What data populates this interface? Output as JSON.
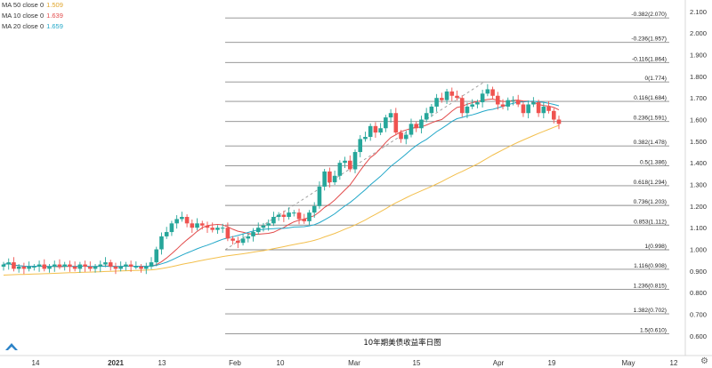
{
  "legend": [
    {
      "label": "MA 50 close 0",
      "value": "1.509",
      "color": "#f3bf4c"
    },
    {
      "label": "MA 10 close 0",
      "value": "1.639",
      "color": "#e24b4b"
    },
    {
      "label": "MA 20 close 0",
      "value": "1.659",
      "color": "#21a7c8"
    }
  ],
  "chart_data": {
    "type": "candlestick",
    "caption": "10年期美债收益率日图",
    "y_axis": {
      "range": [
        0.55,
        2.12
      ],
      "ticks": [
        "2.100",
        "2.000",
        "1.900",
        "1.800",
        "1.700",
        "1.600",
        "1.500",
        "1.400",
        "1.300",
        "1.200",
        "1.100",
        "1.000",
        "0.900",
        "0.800",
        "0.700",
        "0.600"
      ]
    },
    "x_axis": {
      "ticks": [
        {
          "label": "14",
          "bold": false
        },
        {
          "label": "2021",
          "bold": true
        },
        {
          "label": "13",
          "bold": false
        },
        {
          "label": "Feb",
          "bold": false
        },
        {
          "label": "10",
          "bold": false
        },
        {
          "label": "Mar",
          "bold": false
        },
        {
          "label": "15",
          "bold": false
        },
        {
          "label": "Apr",
          "bold": false
        },
        {
          "label": "19",
          "bold": false
        },
        {
          "label": "May",
          "bold": false
        },
        {
          "label": "12",
          "bold": false
        }
      ]
    },
    "fib_levels": [
      {
        "ratio": "-0.382",
        "value": 2.07,
        "label": "-0.382(2.070)"
      },
      {
        "ratio": "-0.236",
        "value": 1.957,
        "label": "-0.236(1.957)"
      },
      {
        "ratio": "-0.116",
        "value": 1.864,
        "label": "-0.116(1.864)"
      },
      {
        "ratio": "0",
        "value": 1.774,
        "label": "0(1.774)"
      },
      {
        "ratio": "0.116",
        "value": 1.684,
        "label": "0.116(1.684)"
      },
      {
        "ratio": "0.236",
        "value": 1.591,
        "label": "0.236(1.591)"
      },
      {
        "ratio": "0.382",
        "value": 1.478,
        "label": "0.382(1.478)"
      },
      {
        "ratio": "0.5",
        "value": 1.386,
        "label": "0.5(1.386)"
      },
      {
        "ratio": "0.618",
        "value": 1.294,
        "label": "0.618(1.294)"
      },
      {
        "ratio": "0.736",
        "value": 1.203,
        "label": "0.736(1.203)"
      },
      {
        "ratio": "0.853",
        "value": 1.112,
        "label": "0.853(1.112)"
      },
      {
        "ratio": "1",
        "value": 0.998,
        "label": "1(0.998)"
      },
      {
        "ratio": "1.116",
        "value": 0.908,
        "label": "1.116(0.908)"
      },
      {
        "ratio": "1.236",
        "value": 0.815,
        "label": "1.236(0.815)"
      },
      {
        "ratio": "1.382",
        "value": 0.702,
        "label": "1.382(0.702)"
      },
      {
        "ratio": "1.5",
        "value": 0.61,
        "label": "1.5(0.610)"
      }
    ],
    "closes": [
      0.93,
      0.94,
      0.91,
      0.92,
      0.91,
      0.92,
      0.92,
      0.93,
      0.91,
      0.92,
      0.93,
      0.92,
      0.93,
      0.92,
      0.91,
      0.93,
      0.92,
      0.91,
      0.92,
      0.93,
      0.94,
      0.92,
      0.91,
      0.92,
      0.93,
      0.92,
      0.92,
      0.91,
      0.92,
      0.94,
      1.0,
      1.06,
      1.08,
      1.12,
      1.14,
      1.15,
      1.12,
      1.1,
      1.12,
      1.11,
      1.1,
      1.09,
      1.1,
      1.1,
      1.05,
      1.04,
      1.03,
      1.05,
      1.06,
      1.08,
      1.1,
      1.11,
      1.12,
      1.15,
      1.16,
      1.15,
      1.17,
      1.17,
      1.14,
      1.13,
      1.17,
      1.2,
      1.29,
      1.36,
      1.31,
      1.34,
      1.4,
      1.41,
      1.37,
      1.45,
      1.51,
      1.52,
      1.57,
      1.54,
      1.56,
      1.61,
      1.63,
      1.54,
      1.51,
      1.53,
      1.58,
      1.56,
      1.6,
      1.63,
      1.66,
      1.7,
      1.69,
      1.73,
      1.71,
      1.7,
      1.63,
      1.66,
      1.67,
      1.68,
      1.72,
      1.74,
      1.71,
      1.67,
      1.66,
      1.69,
      1.69,
      1.67,
      1.63,
      1.67,
      1.68,
      1.63,
      1.66,
      1.64,
      1.6,
      1.58
    ]
  }
}
